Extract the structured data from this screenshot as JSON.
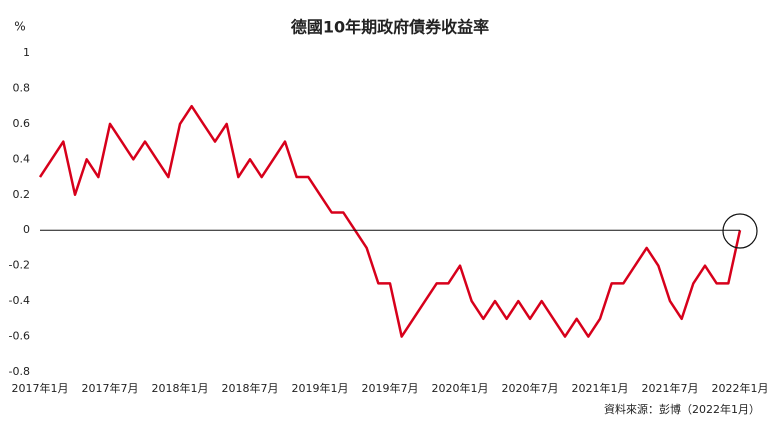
{
  "chart_data": {
    "type": "line",
    "title": "德國10年期政府債券收益率",
    "y_label": "%",
    "source": "資料來源：彭博（2022年1月）",
    "categories": [
      "2017年1月",
      null,
      null,
      null,
      null,
      null,
      "2017年7月",
      null,
      null,
      null,
      null,
      null,
      "2018年1月",
      null,
      null,
      null,
      null,
      null,
      "2018年7月",
      null,
      null,
      null,
      null,
      null,
      "2019年1月",
      null,
      null,
      null,
      null,
      null,
      "2019年7月",
      null,
      null,
      null,
      null,
      null,
      "2020年1月",
      null,
      null,
      null,
      null,
      null,
      "2020年7月",
      null,
      null,
      null,
      null,
      null,
      "2021年1月",
      null,
      null,
      null,
      null,
      null,
      "2021年7月",
      null,
      null,
      null,
      null,
      null,
      "2022年1月"
    ],
    "series": [
      {
        "name": "德國10年期政府債券收益率",
        "color": "#d7001b",
        "values": [
          0.3,
          0.4,
          0.5,
          0.2,
          0.4,
          0.3,
          0.6,
          0.5,
          0.4,
          0.5,
          0.4,
          0.3,
          0.6,
          0.7,
          0.6,
          0.5,
          0.6,
          0.3,
          0.4,
          0.3,
          0.4,
          0.5,
          0.3,
          0.3,
          0.2,
          0.1,
          0.1,
          0.0,
          -0.1,
          -0.3,
          -0.3,
          -0.6,
          -0.5,
          -0.4,
          -0.3,
          -0.3,
          -0.2,
          -0.4,
          -0.5,
          -0.4,
          -0.5,
          -0.4,
          -0.5,
          -0.4,
          -0.5,
          -0.6,
          -0.5,
          -0.6,
          -0.5,
          -0.3,
          -0.3,
          -0.2,
          -0.1,
          -0.2,
          -0.4,
          -0.5,
          -0.3,
          -0.2,
          -0.3,
          -0.3,
          0.0
        ]
      }
    ],
    "ylim": [
      -0.8,
      1
    ],
    "yticks": [
      1,
      0.8,
      0.6,
      0.4,
      0.2,
      0,
      -0.2,
      -0.4,
      -0.6,
      -0.8
    ],
    "zero_line": true
  }
}
